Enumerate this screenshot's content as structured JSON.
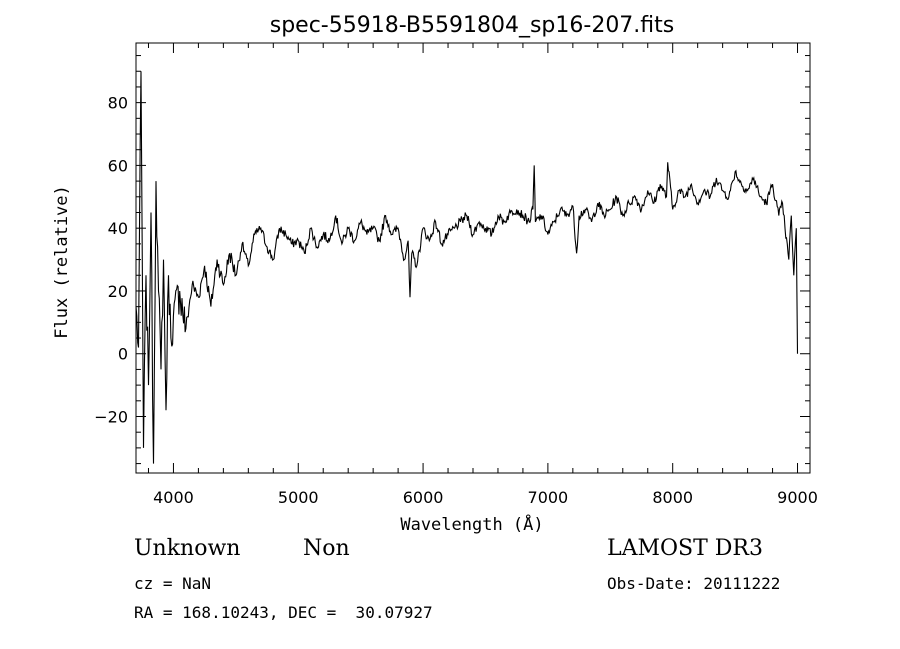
{
  "chart_data": {
    "type": "line",
    "title": "spec-55918-B5591804_sp16-207.fits",
    "xlabel": "Wavelength (Å)",
    "ylabel": "Flux (relative)",
    "xlim": [
      3700,
      9100
    ],
    "ylim": [
      -38,
      99
    ],
    "xticks": [
      4000,
      5000,
      6000,
      7000,
      8000,
      9000
    ],
    "yticks": [
      -20,
      0,
      20,
      40,
      60,
      80
    ],
    "xtick_labels": [
      "4000",
      "5000",
      "6000",
      "7000",
      "8000",
      "9000"
    ],
    "ytick_labels": [
      "−20",
      "0",
      "20",
      "40",
      "60",
      "80"
    ],
    "grid": false,
    "series": [
      {
        "values_x": [
          3700,
          3720,
          3740,
          3760,
          3780,
          3800,
          3820,
          3840,
          3860,
          3880,
          3900,
          3920,
          3940,
          3960,
          3980,
          4000,
          4050,
          4100,
          4150,
          4200,
          4250,
          4300,
          4350,
          4400,
          4450,
          4500,
          4550,
          4600,
          4650,
          4700,
          4750,
          4800,
          4850,
          4900,
          4950,
          5000,
          5050,
          5100,
          5150,
          5200,
          5250,
          5300,
          5350,
          5400,
          5450,
          5500,
          5550,
          5600,
          5650,
          5700,
          5750,
          5800,
          5850,
          5880,
          5895,
          5910,
          5950,
          6000,
          6050,
          6100,
          6150,
          6200,
          6250,
          6300,
          6350,
          6400,
          6450,
          6500,
          6550,
          6600,
          6650,
          6700,
          6750,
          6800,
          6850,
          6880,
          6890,
          6900,
          6950,
          7000,
          7050,
          7100,
          7150,
          7200,
          7230,
          7250,
          7300,
          7350,
          7400,
          7450,
          7500,
          7550,
          7600,
          7650,
          7700,
          7750,
          7800,
          7850,
          7900,
          7950,
          7960,
          8000,
          8050,
          8100,
          8150,
          8200,
          8250,
          8300,
          8350,
          8400,
          8450,
          8500,
          8550,
          8600,
          8650,
          8700,
          8750,
          8800,
          8850,
          8880,
          8900,
          8930,
          8950,
          8970,
          8990,
          9000
        ],
        "values_y": [
          15,
          2,
          90,
          -30,
          25,
          -10,
          45,
          -35,
          55,
          20,
          -5,
          30,
          -18,
          25,
          5,
          12,
          20,
          8,
          22,
          18,
          28,
          15,
          30,
          22,
          32,
          25,
          35,
          28,
          38,
          40,
          34,
          30,
          40,
          38,
          35,
          36,
          32,
          40,
          34,
          38,
          36,
          44,
          35,
          40,
          36,
          42,
          38,
          40,
          36,
          44,
          38,
          40,
          30,
          36,
          18,
          32,
          28,
          40,
          36,
          42,
          35,
          38,
          40,
          42,
          44,
          38,
          42,
          40,
          38,
          44,
          42,
          45,
          46,
          44,
          42,
          46,
          60,
          42,
          44,
          38,
          42,
          46,
          44,
          47,
          32,
          44,
          46,
          42,
          48,
          44,
          46,
          50,
          44,
          48,
          50,
          46,
          52,
          48,
          54,
          50,
          61,
          46,
          52,
          50,
          54,
          48,
          52,
          50,
          56,
          52,
          50,
          58,
          54,
          52,
          56,
          50,
          48,
          54,
          44,
          48,
          40,
          30,
          44,
          25,
          40,
          0
        ]
      }
    ]
  },
  "info": {
    "object_type": "Unknown",
    "object_subtype": "Non",
    "survey": "LAMOST DR3",
    "cz": "cz = NaN",
    "obs_date": "Obs-Date: 20111222",
    "coords": "RA = 168.10243, DEC =  30.07927"
  }
}
